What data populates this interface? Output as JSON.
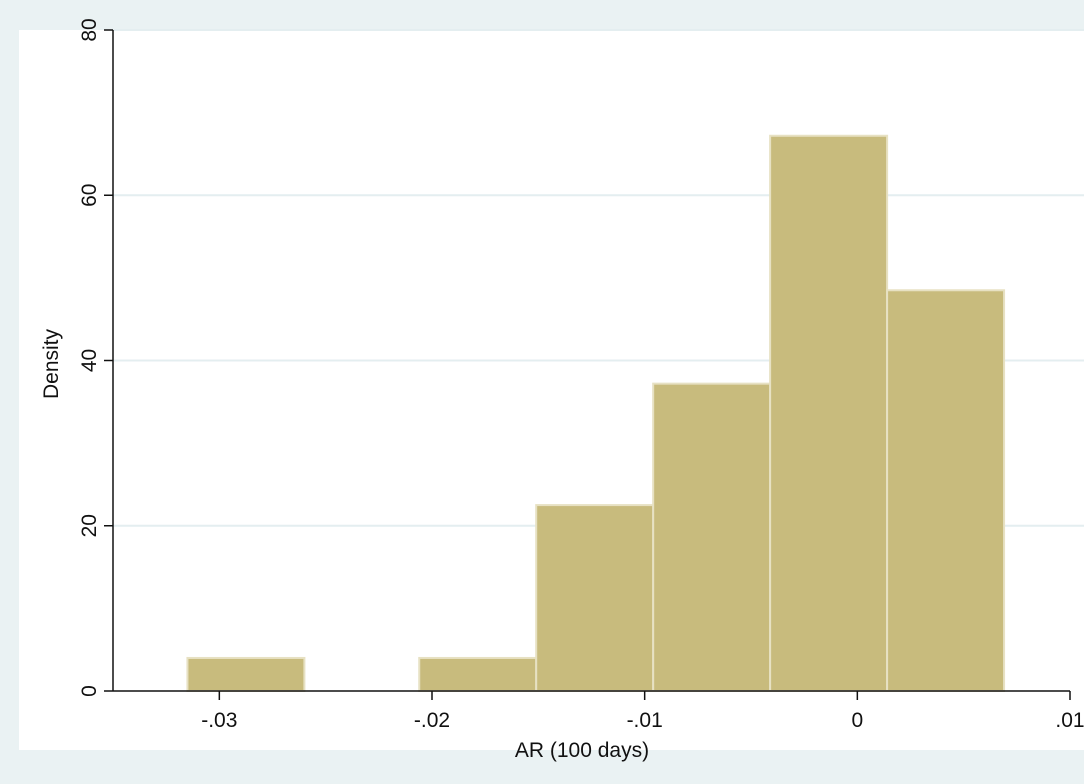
{
  "chart_data": {
    "type": "bar",
    "subtype": "histogram",
    "title": "",
    "xlabel": "AR (100 days)",
    "ylabel": "Density",
    "xlim": [
      -0.035,
      0.01
    ],
    "ylim": [
      0,
      80
    ],
    "x_ticks": [
      -0.03,
      -0.02,
      -0.01,
      0,
      0.01
    ],
    "x_tick_labels": [
      "-.03",
      "-.02",
      "-.01",
      "0",
      ".01"
    ],
    "y_ticks": [
      0,
      20,
      40,
      60,
      80
    ],
    "y_tick_labels": [
      "0",
      "20",
      "40",
      "60",
      "80"
    ],
    "grid": "horizontal",
    "legend": "none",
    "bins": [
      {
        "x0": -0.0315,
        "x1": -0.026,
        "value": 4
      },
      {
        "x0": -0.0206,
        "x1": -0.0151,
        "value": 4
      },
      {
        "x0": -0.0151,
        "x1": -0.0096,
        "value": 22.5
      },
      {
        "x0": -0.0096,
        "x1": -0.0041,
        "value": 37.2
      },
      {
        "x0": -0.0041,
        "x1": 0.0014,
        "value": 67.2
      },
      {
        "x0": 0.0014,
        "x1": 0.0069,
        "value": 48.5
      }
    ],
    "colors": {
      "bar_fill": "#c8bb7d",
      "bar_edge": "#e7e1c3",
      "plot_background": "#ffffff",
      "outer_background": "#eaf2f3",
      "gridline": "#e4eef0",
      "axis": "#111111"
    }
  }
}
